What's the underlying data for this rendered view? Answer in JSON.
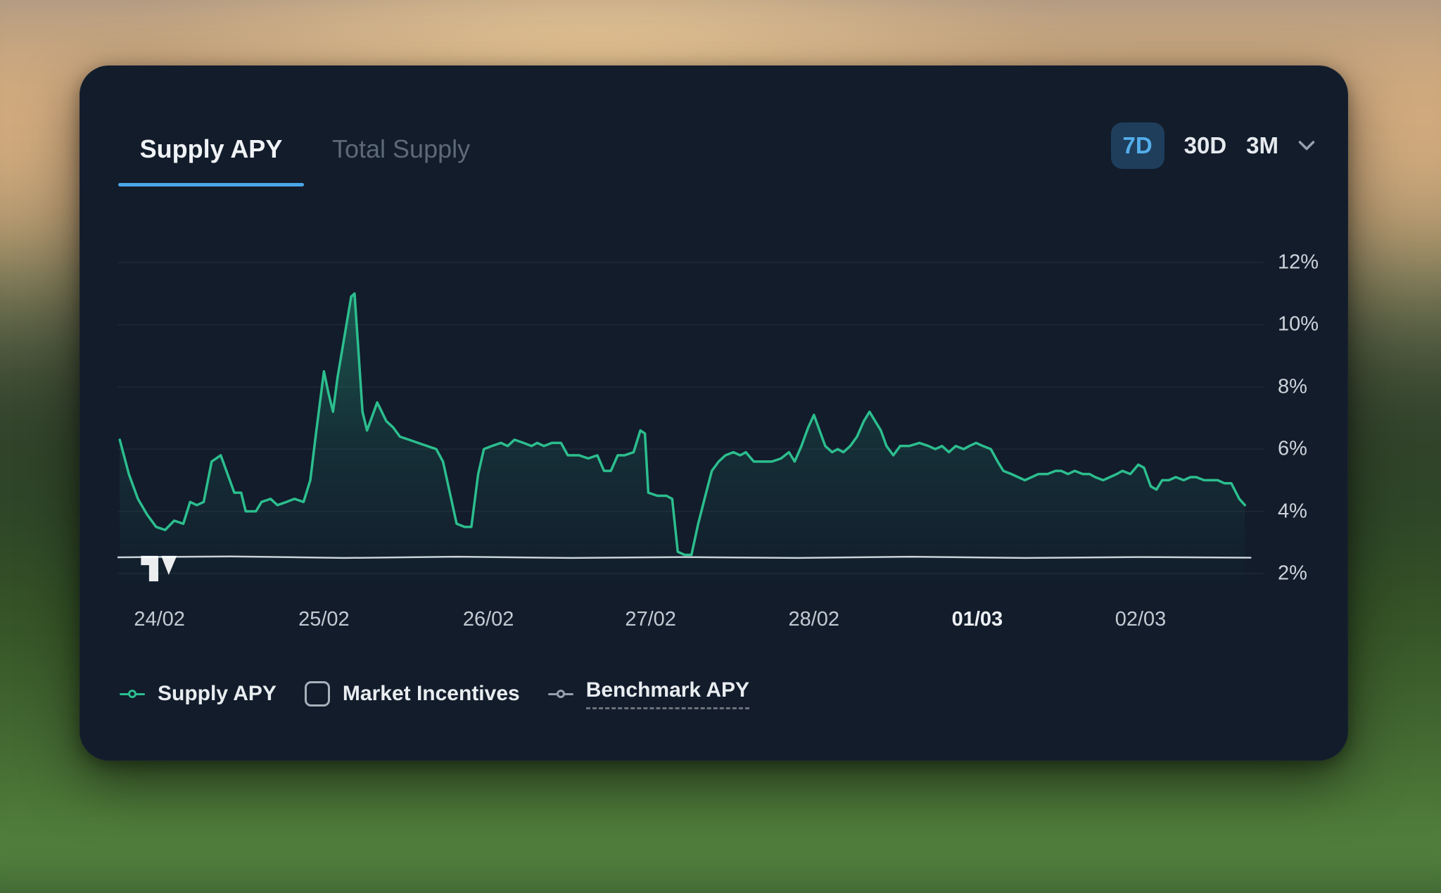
{
  "colors": {
    "card_bg": "#121c2b",
    "accent_blue": "#4aa7e8",
    "chip_bg": "#1e3e5c",
    "chip_text": "#54aeeb",
    "supply_green": "#2cbe8e",
    "benchmark_gray": "#c9d2d9",
    "legend_marker_gray": "#96a0ab"
  },
  "card": {
    "tabs": [
      {
        "label": "Supply APY",
        "active": true
      },
      {
        "label": "Total Supply",
        "active": false
      }
    ],
    "range_selector": {
      "options": [
        {
          "label": "7D",
          "active": true
        },
        {
          "label": "30D",
          "active": false
        },
        {
          "label": "3M",
          "active": false
        }
      ],
      "dropdown_icon": "chevron-down"
    }
  },
  "chart_data": {
    "type": "area",
    "title": "Supply APY",
    "watermark": "TradingView",
    "y_axis": {
      "unit": "%",
      "position": "right",
      "grid": true,
      "range": [
        1.5,
        13.2
      ],
      "tick_values": [
        12,
        10,
        8,
        6,
        4,
        2
      ],
      "tick_labels": [
        "12%",
        "10%",
        "8%",
        "6%",
        "4%",
        "2%"
      ]
    },
    "x_axis": {
      "ticks": [
        {
          "label": "24/02",
          "f": 0.037,
          "bold": false
        },
        {
          "label": "25/02",
          "f": 0.182,
          "bold": false
        },
        {
          "label": "26/02",
          "f": 0.327,
          "bold": false
        },
        {
          "label": "27/02",
          "f": 0.47,
          "bold": false
        },
        {
          "label": "28/02",
          "f": 0.614,
          "bold": false
        },
        {
          "label": "01/03",
          "f": 0.758,
          "bold": true
        },
        {
          "label": "02/03",
          "f": 0.902,
          "bold": false
        }
      ]
    },
    "series": [
      {
        "name": "Supply APY",
        "type": "area",
        "color": "#2cbe8e",
        "points": [
          [
            0.002,
            6.3
          ],
          [
            0.01,
            5.2
          ],
          [
            0.018,
            4.4
          ],
          [
            0.026,
            3.9
          ],
          [
            0.034,
            3.5
          ],
          [
            0.042,
            3.4
          ],
          [
            0.05,
            3.7
          ],
          [
            0.058,
            3.6
          ],
          [
            0.064,
            4.3
          ],
          [
            0.07,
            4.2
          ],
          [
            0.076,
            4.3
          ],
          [
            0.083,
            5.6
          ],
          [
            0.091,
            5.8
          ],
          [
            0.097,
            5.2
          ],
          [
            0.103,
            4.6
          ],
          [
            0.109,
            4.6
          ],
          [
            0.113,
            4.0
          ],
          [
            0.122,
            4.0
          ],
          [
            0.127,
            4.3
          ],
          [
            0.135,
            4.4
          ],
          [
            0.141,
            4.2
          ],
          [
            0.149,
            4.3
          ],
          [
            0.156,
            4.4
          ],
          [
            0.164,
            4.3
          ],
          [
            0.17,
            5.0
          ],
          [
            0.175,
            6.5
          ],
          [
            0.182,
            8.5
          ],
          [
            0.186,
            7.8
          ],
          [
            0.19,
            7.2
          ],
          [
            0.194,
            8.3
          ],
          [
            0.2,
            9.6
          ],
          [
            0.206,
            10.9
          ],
          [
            0.209,
            11.0
          ],
          [
            0.212,
            9.4
          ],
          [
            0.216,
            7.2
          ],
          [
            0.22,
            6.6
          ],
          [
            0.224,
            7.0
          ],
          [
            0.229,
            7.5
          ],
          [
            0.233,
            7.2
          ],
          [
            0.237,
            6.9
          ],
          [
            0.243,
            6.7
          ],
          [
            0.249,
            6.4
          ],
          [
            0.257,
            6.3
          ],
          [
            0.265,
            6.2
          ],
          [
            0.273,
            6.1
          ],
          [
            0.281,
            6.0
          ],
          [
            0.287,
            5.6
          ],
          [
            0.293,
            4.6
          ],
          [
            0.299,
            3.6
          ],
          [
            0.306,
            3.5
          ],
          [
            0.312,
            3.5
          ],
          [
            0.318,
            5.2
          ],
          [
            0.323,
            6.0
          ],
          [
            0.33,
            6.1
          ],
          [
            0.338,
            6.2
          ],
          [
            0.344,
            6.1
          ],
          [
            0.35,
            6.3
          ],
          [
            0.358,
            6.2
          ],
          [
            0.365,
            6.1
          ],
          [
            0.37,
            6.2
          ],
          [
            0.376,
            6.1
          ],
          [
            0.383,
            6.2
          ],
          [
            0.391,
            6.2
          ],
          [
            0.397,
            5.8
          ],
          [
            0.407,
            5.8
          ],
          [
            0.415,
            5.7
          ],
          [
            0.423,
            5.8
          ],
          [
            0.429,
            5.3
          ],
          [
            0.435,
            5.3
          ],
          [
            0.441,
            5.8
          ],
          [
            0.447,
            5.8
          ],
          [
            0.455,
            5.9
          ],
          [
            0.461,
            6.6
          ],
          [
            0.465,
            6.5
          ],
          [
            0.468,
            4.6
          ],
          [
            0.476,
            4.5
          ],
          [
            0.484,
            4.5
          ],
          [
            0.489,
            4.4
          ],
          [
            0.494,
            2.7
          ],
          [
            0.5,
            2.6
          ],
          [
            0.506,
            2.6
          ],
          [
            0.512,
            3.6
          ],
          [
            0.519,
            4.6
          ],
          [
            0.524,
            5.3
          ],
          [
            0.53,
            5.6
          ],
          [
            0.536,
            5.8
          ],
          [
            0.543,
            5.9
          ],
          [
            0.549,
            5.8
          ],
          [
            0.554,
            5.9
          ],
          [
            0.561,
            5.6
          ],
          [
            0.569,
            5.6
          ],
          [
            0.577,
            5.6
          ],
          [
            0.585,
            5.7
          ],
          [
            0.592,
            5.9
          ],
          [
            0.597,
            5.6
          ],
          [
            0.603,
            6.1
          ],
          [
            0.609,
            6.7
          ],
          [
            0.614,
            7.1
          ],
          [
            0.619,
            6.6
          ],
          [
            0.624,
            6.1
          ],
          [
            0.63,
            5.9
          ],
          [
            0.635,
            6.0
          ],
          [
            0.64,
            5.9
          ],
          [
            0.646,
            6.1
          ],
          [
            0.652,
            6.4
          ],
          [
            0.658,
            6.9
          ],
          [
            0.663,
            7.2
          ],
          [
            0.668,
            6.9
          ],
          [
            0.673,
            6.6
          ],
          [
            0.678,
            6.1
          ],
          [
            0.684,
            5.8
          ],
          [
            0.69,
            6.1
          ],
          [
            0.698,
            6.1
          ],
          [
            0.707,
            6.2
          ],
          [
            0.715,
            6.1
          ],
          [
            0.721,
            6.0
          ],
          [
            0.727,
            6.1
          ],
          [
            0.733,
            5.9
          ],
          [
            0.739,
            6.1
          ],
          [
            0.746,
            6.0
          ],
          [
            0.751,
            6.1
          ],
          [
            0.757,
            6.2
          ],
          [
            0.763,
            6.1
          ],
          [
            0.77,
            6.0
          ],
          [
            0.776,
            5.6
          ],
          [
            0.781,
            5.3
          ],
          [
            0.788,
            5.2
          ],
          [
            0.794,
            5.1
          ],
          [
            0.8,
            5.0
          ],
          [
            0.806,
            5.1
          ],
          [
            0.812,
            5.2
          ],
          [
            0.82,
            5.2
          ],
          [
            0.827,
            5.3
          ],
          [
            0.832,
            5.3
          ],
          [
            0.838,
            5.2
          ],
          [
            0.844,
            5.3
          ],
          [
            0.851,
            5.2
          ],
          [
            0.857,
            5.2
          ],
          [
            0.862,
            5.1
          ],
          [
            0.869,
            5.0
          ],
          [
            0.875,
            5.1
          ],
          [
            0.881,
            5.2
          ],
          [
            0.886,
            5.3
          ],
          [
            0.893,
            5.2
          ],
          [
            0.9,
            5.5
          ],
          [
            0.905,
            5.4
          ],
          [
            0.911,
            4.8
          ],
          [
            0.916,
            4.7
          ],
          [
            0.921,
            5.0
          ],
          [
            0.927,
            5.0
          ],
          [
            0.933,
            5.1
          ],
          [
            0.94,
            5.0
          ],
          [
            0.946,
            5.1
          ],
          [
            0.951,
            5.1
          ],
          [
            0.958,
            5.0
          ],
          [
            0.964,
            5.0
          ],
          [
            0.97,
            5.0
          ],
          [
            0.976,
            4.9
          ],
          [
            0.982,
            4.9
          ],
          [
            0.989,
            4.4
          ],
          [
            0.994,
            4.2
          ]
        ]
      },
      {
        "name": "Benchmark APY",
        "type": "line",
        "color": "#c9d2d9",
        "points": [
          [
            0.0,
            2.52
          ],
          [
            0.1,
            2.55
          ],
          [
            0.2,
            2.5
          ],
          [
            0.3,
            2.54
          ],
          [
            0.4,
            2.5
          ],
          [
            0.5,
            2.53
          ],
          [
            0.6,
            2.5
          ],
          [
            0.7,
            2.54
          ],
          [
            0.8,
            2.5
          ],
          [
            0.9,
            2.53
          ],
          [
            0.999,
            2.51
          ]
        ]
      }
    ],
    "legend": [
      {
        "label": "Supply APY",
        "marker": "line-circle",
        "color": "#2cbe8e"
      },
      {
        "label": "Market Incentives",
        "marker": "checkbox",
        "checked": false
      },
      {
        "label": "Benchmark APY",
        "marker": "line-circle",
        "color": "#96a0ab",
        "underline": "dashed"
      }
    ]
  }
}
